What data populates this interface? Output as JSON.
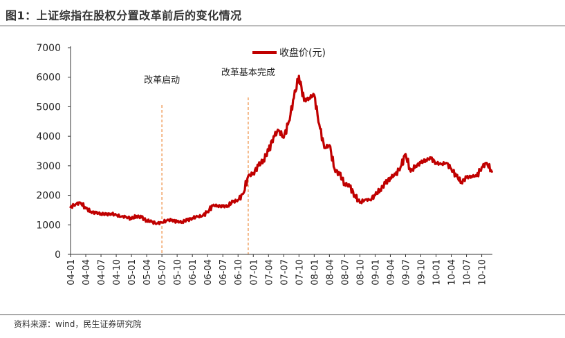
{
  "title": "图1：上证综指在股权分置改革前后的变化情况",
  "source": "资料来源：wind，民生证券研究院",
  "colors": {
    "series": "#c00000",
    "annotation": "#f0a060",
    "axis": "#333333"
  },
  "chart_data": {
    "type": "line",
    "ylim": [
      0,
      7000
    ],
    "yticks": [
      0,
      1000,
      2000,
      3000,
      4000,
      5000,
      6000,
      7000
    ],
    "ytick_labels": [
      "0",
      "1000",
      "2000",
      "3000",
      "4000",
      "5000",
      "6000",
      "7000"
    ],
    "xtick_labels": [
      "04-01",
      "04-04",
      "04-07",
      "04-10",
      "05-01",
      "05-04",
      "05-07",
      "05-10",
      "06-01",
      "06-04",
      "06-07",
      "06-10",
      "07-01",
      "07-04",
      "07-07",
      "07-10",
      "08-01",
      "08-04",
      "08-07",
      "08-10",
      "09-01",
      "09-04",
      "09-07",
      "09-10",
      "10-01",
      "10-04",
      "10-07",
      "10-10"
    ],
    "legend": {
      "label": "收盘价(元)",
      "placement": "top-center"
    },
    "annotations": [
      {
        "text": "改革启动",
        "x": "05-07"
      },
      {
        "text": "改革基本完成",
        "x": "06-12"
      }
    ],
    "series": [
      {
        "name": "收盘价(元)",
        "x": [
          "04-01",
          "04-02",
          "04-03",
          "04-04",
          "04-05",
          "04-06",
          "04-07",
          "04-08",
          "04-09",
          "04-10",
          "04-11",
          "04-12",
          "05-01",
          "05-02",
          "05-03",
          "05-04",
          "05-05",
          "05-06",
          "05-07",
          "05-08",
          "05-09",
          "05-10",
          "05-11",
          "05-12",
          "06-01",
          "06-02",
          "06-03",
          "06-04",
          "06-05",
          "06-06",
          "06-07",
          "06-08",
          "06-09",
          "06-10",
          "06-11",
          "06-12",
          "07-01",
          "07-02",
          "07-03",
          "07-04",
          "07-05",
          "07-06",
          "07-07",
          "07-08",
          "07-09",
          "07-10",
          "07-11",
          "07-12",
          "08-01",
          "08-02",
          "08-03",
          "08-04",
          "08-05",
          "08-06",
          "08-07",
          "08-08",
          "08-09",
          "08-10",
          "08-11",
          "08-12",
          "09-01",
          "09-02",
          "09-03",
          "09-04",
          "09-05",
          "09-06",
          "09-07",
          "09-08",
          "09-09",
          "09-10",
          "09-11",
          "09-12",
          "10-01",
          "10-02",
          "10-03",
          "10-04",
          "10-05",
          "10-06",
          "10-07",
          "10-08",
          "10-09",
          "10-10",
          "10-11",
          "10-12"
        ],
        "values": [
          1600,
          1700,
          1750,
          1560,
          1450,
          1400,
          1380,
          1350,
          1380,
          1330,
          1280,
          1270,
          1200,
          1300,
          1250,
          1150,
          1100,
          1050,
          1080,
          1150,
          1170,
          1100,
          1100,
          1160,
          1230,
          1280,
          1300,
          1450,
          1650,
          1650,
          1620,
          1650,
          1780,
          1840,
          2050,
          2650,
          2750,
          3000,
          3200,
          3500,
          4000,
          4200,
          3950,
          4500,
          5300,
          6050,
          5200,
          5300,
          5400,
          4400,
          3600,
          3700,
          2900,
          2700,
          2400,
          2300,
          2000,
          1750,
          1850,
          1850,
          2000,
          2200,
          2400,
          2600,
          2700,
          2950,
          3400,
          2800,
          3000,
          3100,
          3200,
          3250,
          3100,
          3050,
          3100,
          2900,
          2650,
          2450,
          2600,
          2650,
          2650,
          2950,
          3100,
          2800
        ]
      }
    ]
  }
}
